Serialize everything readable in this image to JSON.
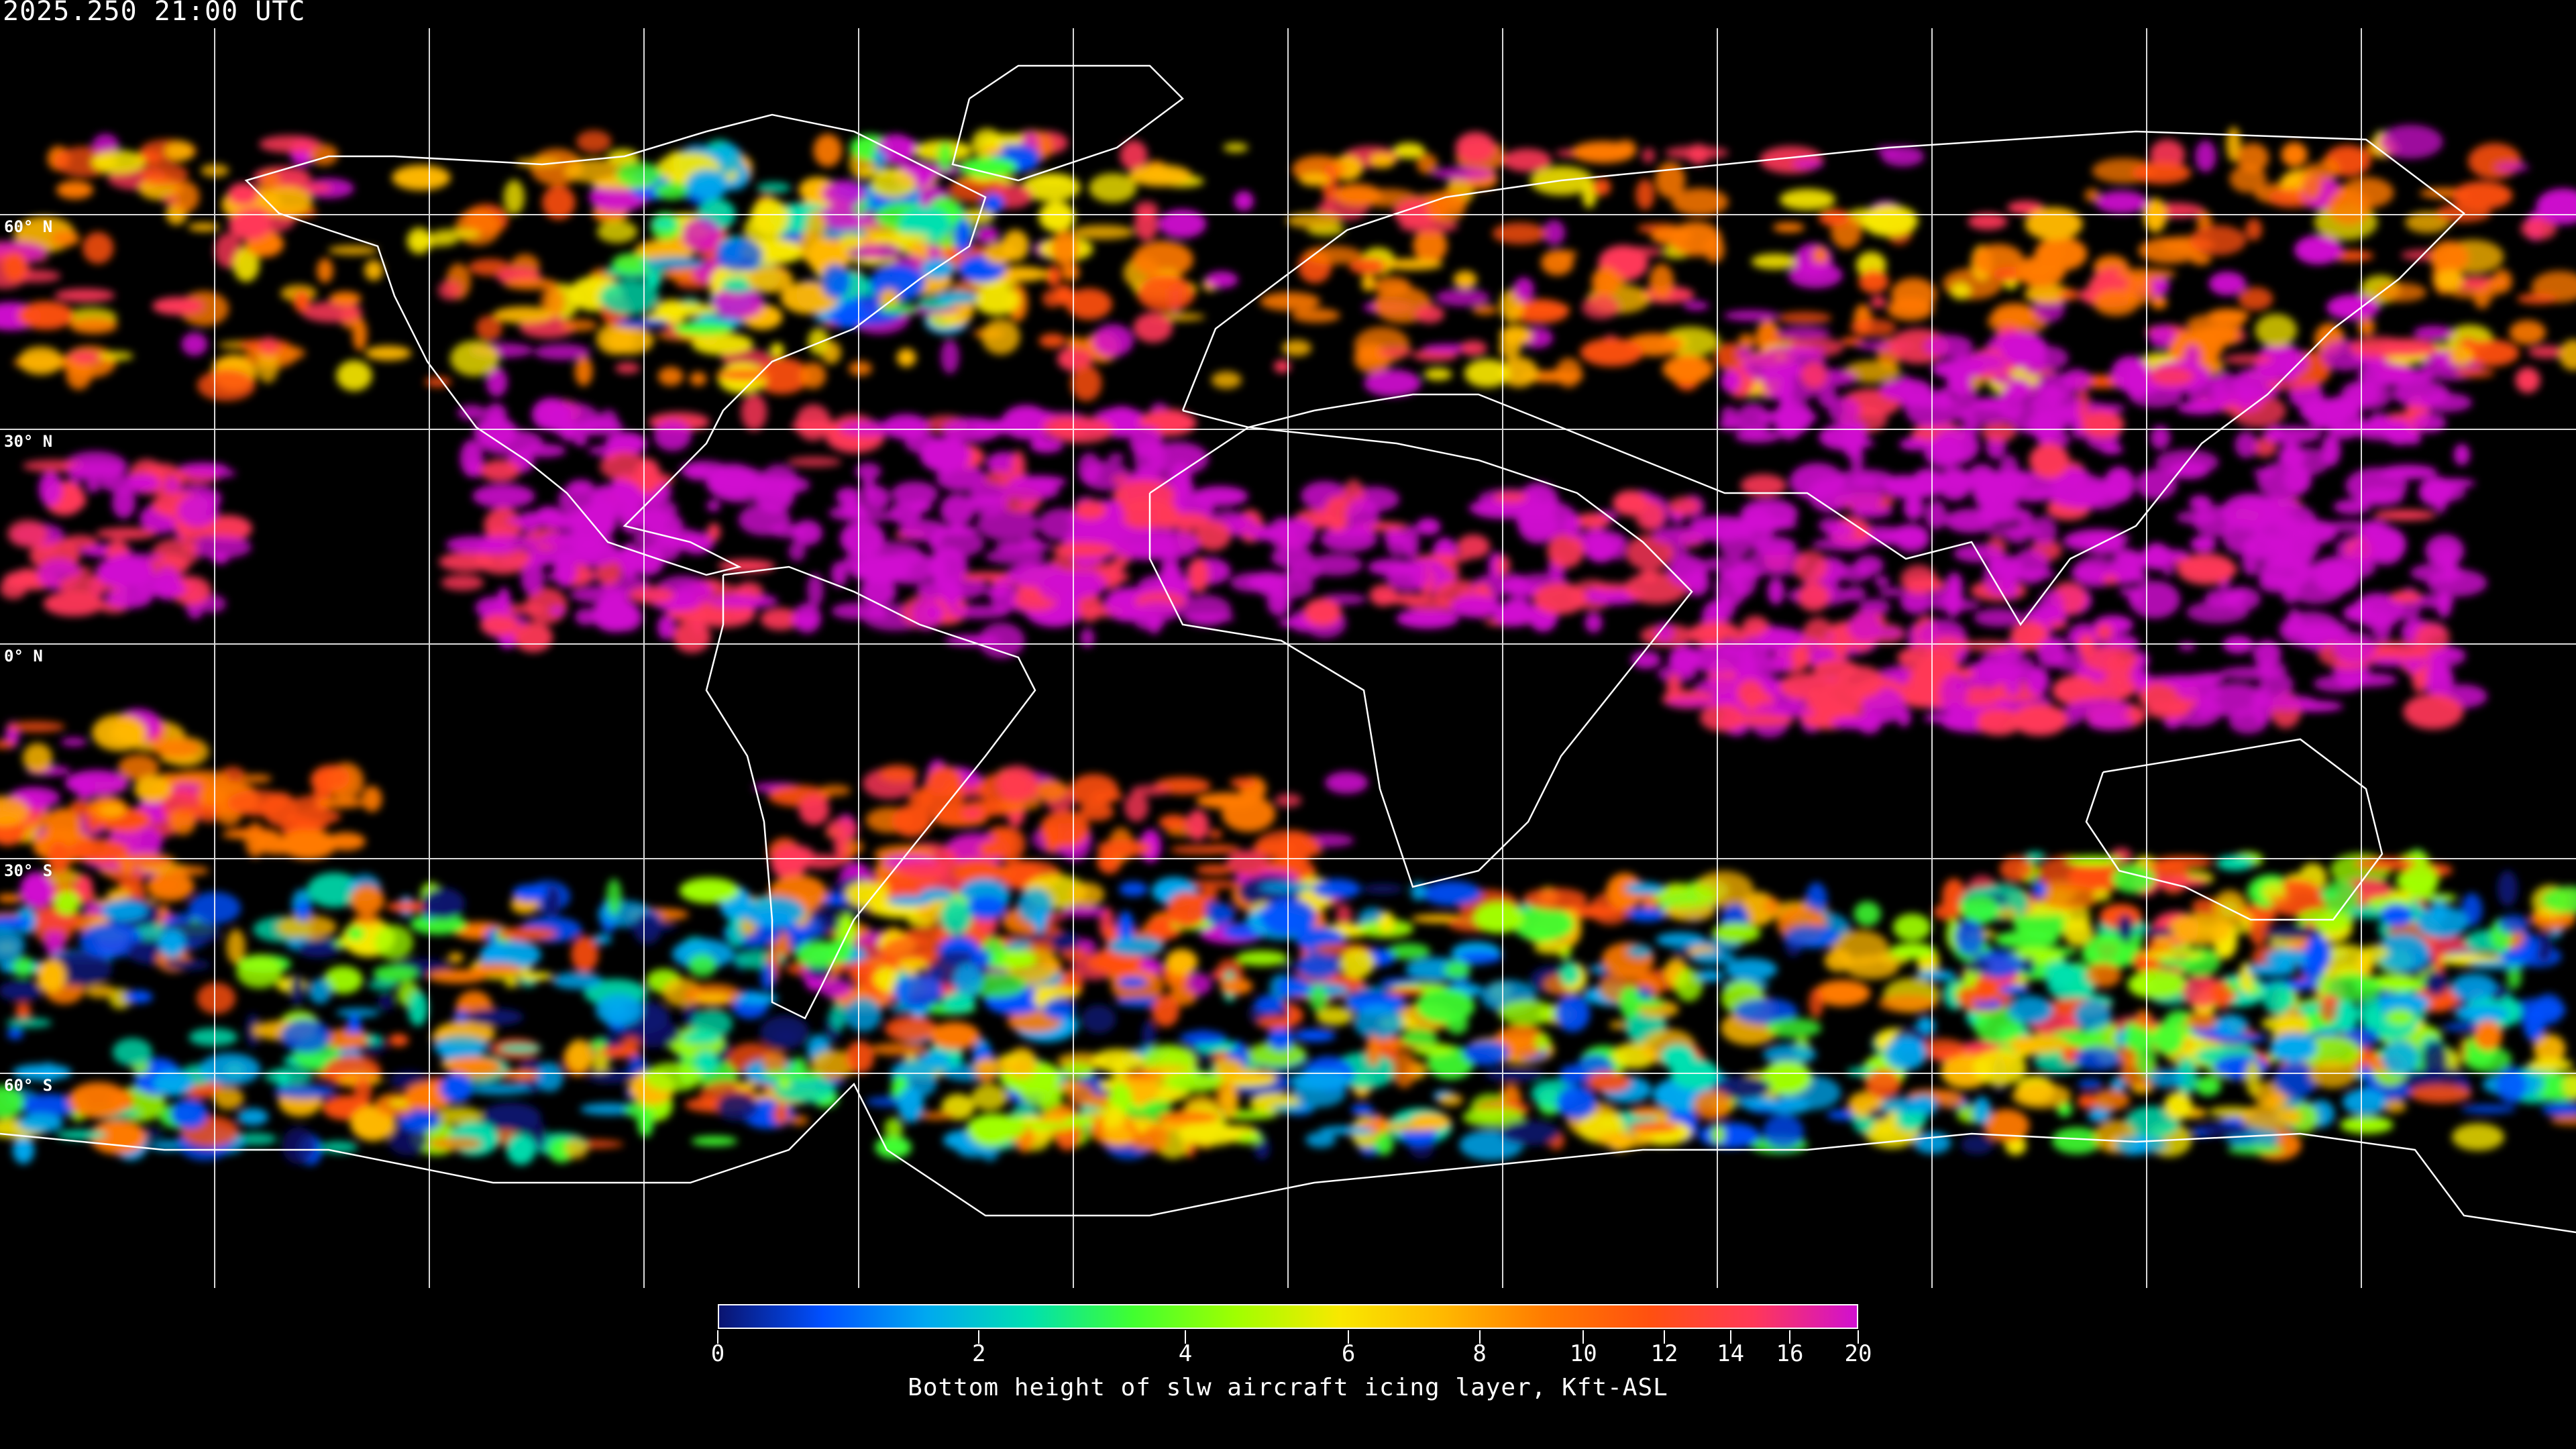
{
  "timestamp": "2025.250 21:00 UTC",
  "map": {
    "projection": "equirectangular",
    "background": "#000000",
    "gridline_color": "#ffffff",
    "coastline_color": "#ffffff",
    "lat_labels": [
      "60° N",
      "30° N",
      "0° N",
      "30° S",
      "60° S"
    ],
    "lat_values": [
      60,
      30,
      0,
      -30,
      -60
    ],
    "gridline_spacing_deg": 30
  },
  "colorbar": {
    "title": "Bottom height of slw aircraft icing layer, Kft-ASL",
    "min": 0,
    "max": 20,
    "tick_labels": [
      "0",
      "2",
      "4",
      "6",
      "8",
      "10",
      "12",
      "14",
      "16",
      "20"
    ],
    "tick_values": [
      0,
      2,
      4,
      6,
      8,
      10,
      12,
      14,
      16,
      20
    ],
    "colors": [
      "#0a1470",
      "#0050ff",
      "#00a8f0",
      "#00e0b0",
      "#40ff30",
      "#a0ff00",
      "#f8e800",
      "#ffb800",
      "#ff7a00",
      "#ff5010",
      "#ff3858",
      "#d010d0"
    ]
  }
}
